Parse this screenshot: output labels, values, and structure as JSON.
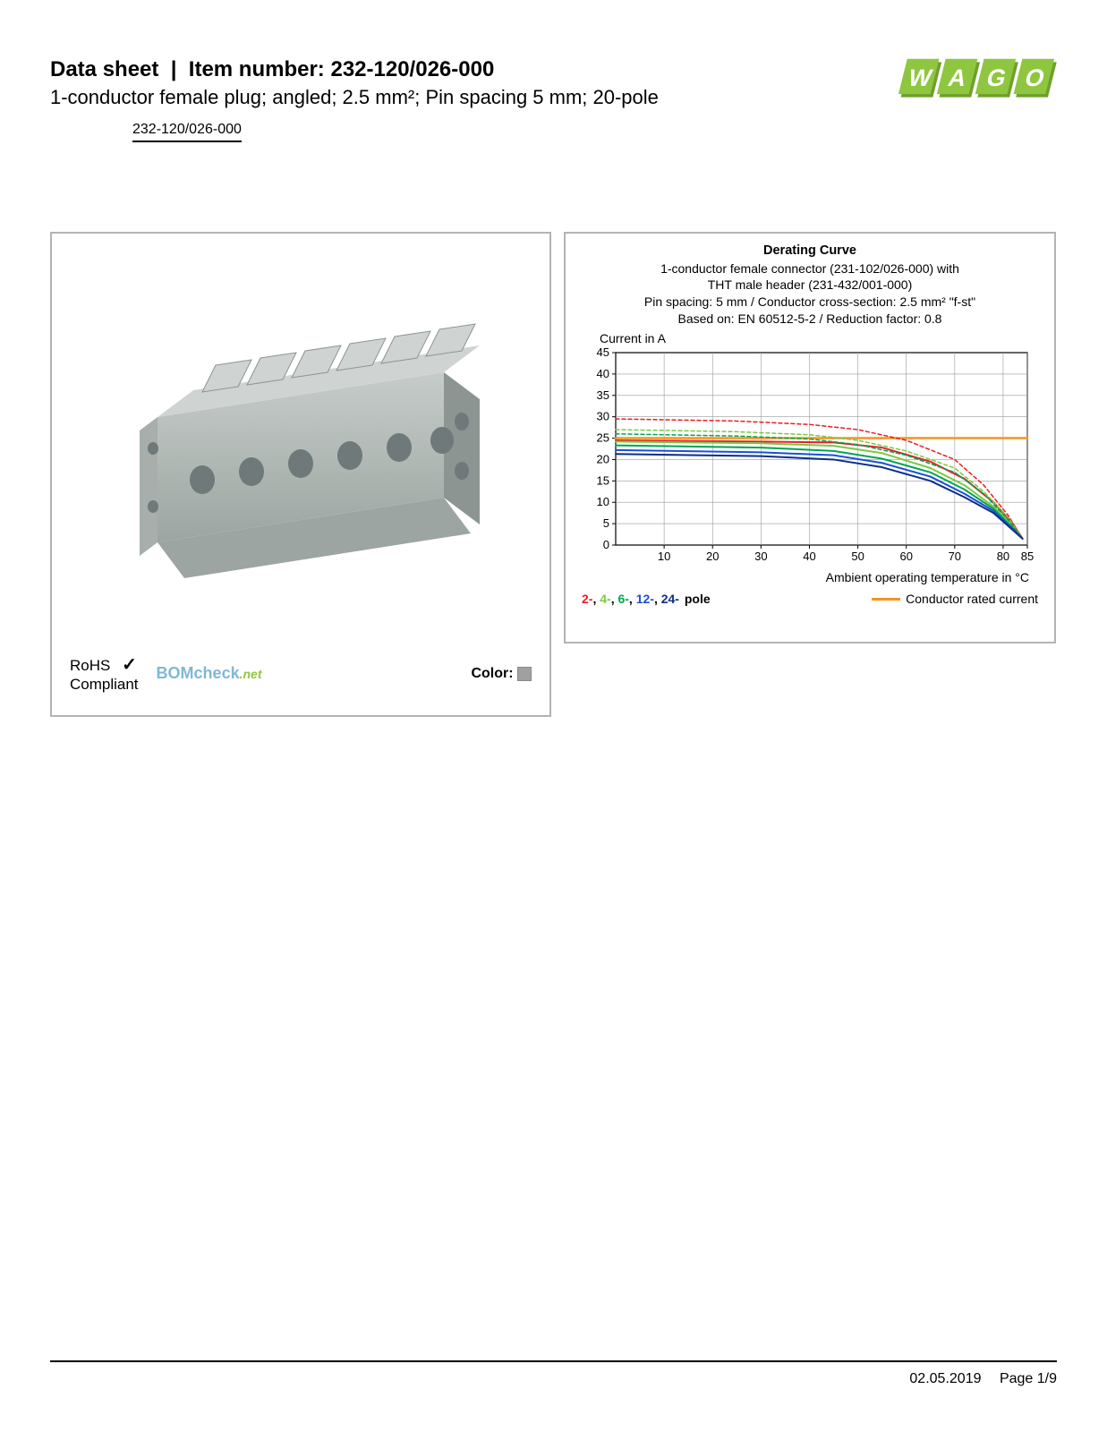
{
  "header": {
    "data_sheet_label": "Data sheet",
    "item_number_label": "Item number:",
    "item_number": "232-120/026-000",
    "subtitle": "1-conductor female plug; angled; 2.5 mm²; Pin spacing 5 mm; 20-pole",
    "link": "232-120/026-000"
  },
  "logo": {
    "text": "WAGO",
    "primary_color": "#8fc63f",
    "shadow_color": "#6da02c"
  },
  "left_panel": {
    "product_body_color": "#b7bdbb",
    "product_lever_color": "#c6ccc9",
    "product_hole_color": "#8c9592",
    "rohs_label": "RoHS",
    "compliant_label": "Compliant",
    "bomcheck_bom": "BOM",
    "bomcheck_check": "check",
    "bomcheck_net": ".net",
    "color_label": "Color:",
    "color_swatch": "#a0a0a0"
  },
  "chart": {
    "title": "Derating Curve",
    "subtitle_line1": "1-conductor female connector (231-102/026-000) with",
    "subtitle_line2": "THT male header (231-432/001-000)",
    "subtitle_line3": "Pin spacing: 5 mm / Conductor cross-section: 2.5 mm² \"f-st\"",
    "subtitle_line4": "Based on: EN 60512-5-2 / Reduction factor: 0.8",
    "y_axis_label": "Current in A",
    "x_axis_label": "Ambient operating temperature in °C",
    "y_ticks": [
      0,
      5,
      10,
      15,
      20,
      25,
      30,
      35,
      40,
      45
    ],
    "x_ticks": [
      10,
      20,
      30,
      40,
      50,
      60,
      70,
      80,
      85
    ],
    "xlim": [
      0,
      85
    ],
    "ylim": [
      0,
      45
    ],
    "grid_color": "#999999",
    "bg_color": "#ffffff",
    "axis_fontsize": 13,
    "series": {
      "rated": {
        "color": "#f7941d",
        "points": [
          [
            0,
            25
          ],
          [
            85,
            25
          ]
        ],
        "dash": null,
        "width": 2.5
      },
      "s2_solid": {
        "color": "#e81e25",
        "points": [
          [
            0,
            24.5
          ],
          [
            30,
            24.2
          ],
          [
            45,
            24
          ],
          [
            55,
            22.8
          ],
          [
            65,
            19.5
          ],
          [
            72,
            15.5
          ],
          [
            78,
            10
          ],
          [
            82,
            5
          ],
          [
            84,
            1.5
          ]
        ],
        "width": 2
      },
      "s2_dash": {
        "color": "#e81e25",
        "points": [
          [
            0,
            29.5
          ],
          [
            25,
            29
          ],
          [
            40,
            28.2
          ],
          [
            50,
            27
          ],
          [
            60,
            24.5
          ],
          [
            70,
            20
          ],
          [
            76,
            14
          ],
          [
            81,
            7
          ],
          [
            84,
            1.5
          ]
        ],
        "dash": "4,3",
        "width": 1.5
      },
      "s4_solid": {
        "color": "#7ac943",
        "points": [
          [
            0,
            24.2
          ],
          [
            30,
            23.8
          ],
          [
            45,
            23.2
          ],
          [
            55,
            21.5
          ],
          [
            65,
            18
          ],
          [
            72,
            14
          ],
          [
            78,
            9
          ],
          [
            82,
            4.5
          ],
          [
            84,
            1.5
          ]
        ],
        "width": 2
      },
      "s4_dash": {
        "color": "#7ac943",
        "points": [
          [
            0,
            27
          ],
          [
            25,
            26.5
          ],
          [
            40,
            25.8
          ],
          [
            50,
            24.5
          ],
          [
            60,
            22
          ],
          [
            70,
            18
          ],
          [
            76,
            12.5
          ],
          [
            81,
            6.5
          ],
          [
            84,
            1.5
          ]
        ],
        "dash": "4,3",
        "width": 1.5
      },
      "s6_solid": {
        "color": "#00a651",
        "points": [
          [
            0,
            23.3
          ],
          [
            30,
            22.8
          ],
          [
            45,
            22
          ],
          [
            55,
            20.2
          ],
          [
            65,
            17
          ],
          [
            72,
            13
          ],
          [
            78,
            8.5
          ],
          [
            82,
            4
          ],
          [
            84,
            1.5
          ]
        ],
        "width": 2
      },
      "s6_dash": {
        "color": "#00a651",
        "points": [
          [
            0,
            26
          ],
          [
            25,
            25.5
          ],
          [
            40,
            24.8
          ],
          [
            50,
            23.5
          ],
          [
            60,
            21
          ],
          [
            70,
            17
          ],
          [
            76,
            12
          ],
          [
            81,
            6
          ],
          [
            84,
            1.5
          ]
        ],
        "dash": "4,3",
        "width": 1.5
      },
      "s12_solid": {
        "color": "#1b4fd8",
        "points": [
          [
            0,
            22.2
          ],
          [
            30,
            21.7
          ],
          [
            45,
            21
          ],
          [
            55,
            19.2
          ],
          [
            65,
            16
          ],
          [
            72,
            12
          ],
          [
            78,
            8
          ],
          [
            82,
            3.8
          ],
          [
            84,
            1.5
          ]
        ],
        "width": 2
      },
      "s24_solid": {
        "color": "#0b2e8a",
        "points": [
          [
            0,
            21.3
          ],
          [
            30,
            20.8
          ],
          [
            45,
            20
          ],
          [
            55,
            18.2
          ],
          [
            65,
            15
          ],
          [
            72,
            11.2
          ],
          [
            78,
            7.5
          ],
          [
            82,
            3.5
          ],
          [
            84,
            1.5
          ]
        ],
        "width": 2
      }
    },
    "legend": {
      "p2": {
        "label": "2-",
        "color": "#e81e25"
      },
      "p4": {
        "label": "4-",
        "color": "#7ac943"
      },
      "p6": {
        "label": "6-",
        "color": "#00a651"
      },
      "p12": {
        "label": "12-",
        "color": "#1b4fd8"
      },
      "p24": {
        "label": "24-",
        "color": "#0b2e8a"
      },
      "suffix": "pole",
      "rated_label": "Conductor rated current",
      "rated_color": "#f7941d"
    }
  },
  "footer": {
    "date": "02.05.2019",
    "page": "Page 1/9"
  }
}
